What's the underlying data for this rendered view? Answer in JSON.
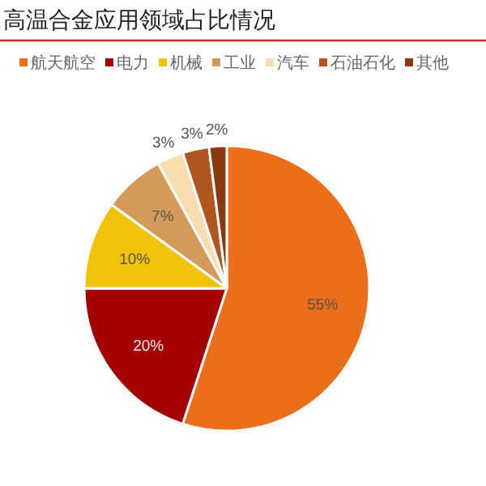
{
  "chart_data": {
    "type": "pie",
    "title": "高温合金应用领域占比情况",
    "categories": [
      "航天航空",
      "电力",
      "机械",
      "工业",
      "汽车",
      "石油石化",
      "其他"
    ],
    "values": [
      55,
      20,
      10,
      7,
      3,
      3,
      2
    ],
    "colors": [
      "#ec6e1a",
      "#a50000",
      "#f0c20a",
      "#d49a5a",
      "#f7ddb0",
      "#b0561e",
      "#8b3a0f"
    ],
    "value_labels": [
      "55%",
      "20%",
      "10%",
      "7%",
      "3%",
      "3%",
      "2%"
    ],
    "legend": "top"
  }
}
